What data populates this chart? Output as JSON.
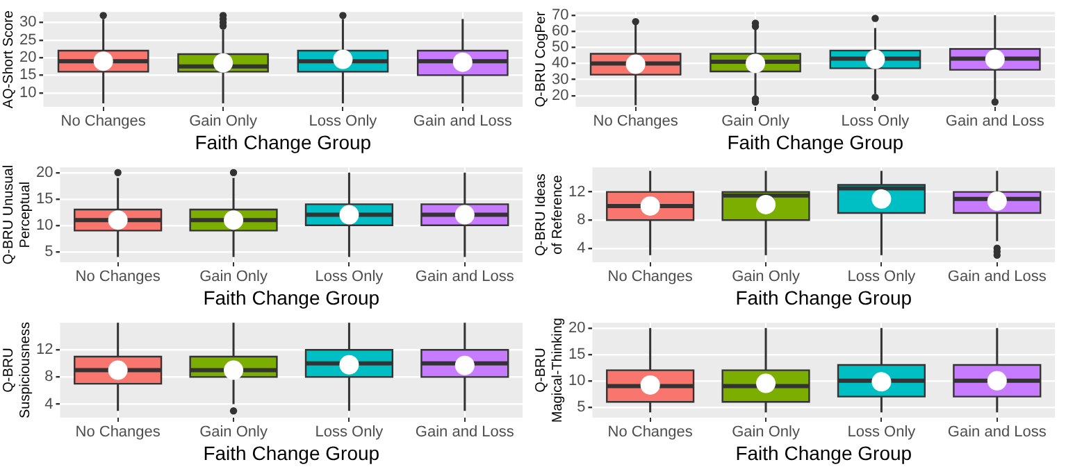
{
  "chart_data": [
    {
      "type": "box",
      "xlabel": "Faith Change Group",
      "ylabel": "AQ-Short Score",
      "categories": [
        "No Changes",
        "Gain Only",
        "Loss Only",
        "Gain and Loss"
      ],
      "colors": [
        "#f8766d",
        "#7cae00",
        "#00bfc4",
        "#c77cff"
      ],
      "ylim": [
        6,
        33
      ],
      "yticks": [
        10,
        15,
        20,
        25,
        30
      ],
      "grid": true,
      "legend": false,
      "boxes": [
        {
          "low": 7,
          "q1": 16,
          "median": 19,
          "q3": 22,
          "high": 31,
          "mean": 19,
          "outliers": [
            32
          ]
        },
        {
          "low": 7,
          "q1": 16,
          "median": 17.5,
          "q3": 21,
          "high": 28,
          "mean": 18.5,
          "outliers": [
            29,
            30,
            31,
            32
          ]
        },
        {
          "low": 7,
          "q1": 16,
          "median": 19,
          "q3": 22,
          "high": 31,
          "mean": 19.5,
          "outliers": [
            32
          ]
        },
        {
          "low": 7,
          "q1": 15,
          "median": 19,
          "q3": 22,
          "high": 31,
          "mean": 18.7
        }
      ]
    },
    {
      "type": "box",
      "xlabel": "Faith Change Group",
      "ylabel": "Q-BRU CogPer",
      "categories": [
        "No Changes",
        "Gain Only",
        "Loss Only",
        "Gain and Loss"
      ],
      "colors": [
        "#f8766d",
        "#7cae00",
        "#00bfc4",
        "#c77cff"
      ],
      "ylim": [
        13,
        72
      ],
      "yticks": [
        20,
        30,
        40,
        50,
        60,
        70
      ],
      "grid": true,
      "legend": false,
      "boxes": [
        {
          "low": 14,
          "q1": 33,
          "median": 40,
          "q3": 46,
          "high": 65,
          "mean": 39.5,
          "outliers": [
            66
          ]
        },
        {
          "low": 19,
          "q1": 35,
          "median": 41,
          "q3": 46,
          "high": 62,
          "mean": 40,
          "outliers": [
            63,
            65,
            16,
            18
          ]
        },
        {
          "low": 21,
          "q1": 37,
          "median": 43,
          "q3": 48,
          "high": 62,
          "mean": 42.5,
          "outliers": [
            19,
            68
          ]
        },
        {
          "low": 17,
          "q1": 36,
          "median": 43,
          "q3": 49,
          "high": 70,
          "mean": 42.5,
          "outliers": [
            16
          ]
        }
      ]
    },
    {
      "type": "box",
      "xlabel": "Faith Change Group",
      "ylabel": "Q-BRU Unusual Perceptual",
      "categories": [
        "No Changes",
        "Gain Only",
        "Loss Only",
        "Gain and Loss"
      ],
      "colors": [
        "#f8766d",
        "#7cae00",
        "#00bfc4",
        "#c77cff"
      ],
      "ylim": [
        3,
        21
      ],
      "yticks": [
        5,
        10,
        15,
        20
      ],
      "grid": true,
      "legend": false,
      "boxes": [
        {
          "low": 4,
          "q1": 9,
          "median": 11,
          "q3": 13,
          "high": 19,
          "mean": 11,
          "outliers": [
            20
          ]
        },
        {
          "low": 4,
          "q1": 9,
          "median": 11,
          "q3": 13,
          "high": 19,
          "mean": 11,
          "outliers": [
            20
          ]
        },
        {
          "low": 4,
          "q1": 10,
          "median": 12,
          "q3": 14,
          "high": 20,
          "mean": 12
        },
        {
          "low": 4,
          "q1": 10,
          "median": 12,
          "q3": 14,
          "high": 20,
          "mean": 12
        }
      ]
    },
    {
      "type": "box",
      "xlabel": "Faith Change Group",
      "ylabel": "Q-BRU Ideas of Reference",
      "categories": [
        "No Changes",
        "Gain Only",
        "Loss Only",
        "Gain and Loss"
      ],
      "colors": [
        "#f8766d",
        "#7cae00",
        "#00bfc4",
        "#c77cff"
      ],
      "ylim": [
        2,
        15.5
      ],
      "yticks": [
        4,
        8,
        12
      ],
      "grid": true,
      "legend": false,
      "boxes": [
        {
          "low": 3,
          "q1": 8,
          "median": 10,
          "q3": 12,
          "high": 15,
          "mean": 10
        },
        {
          "low": 3,
          "q1": 8,
          "median": 11.5,
          "q3": 12,
          "high": 15,
          "mean": 10.2
        },
        {
          "low": 3,
          "q1": 9,
          "median": 12.5,
          "q3": 13,
          "high": 15,
          "mean": 11
        },
        {
          "low": 5,
          "q1": 9,
          "median": 11,
          "q3": 12,
          "high": 15,
          "mean": 10.7,
          "outliers": [
            3,
            3.5,
            4
          ]
        }
      ]
    },
    {
      "type": "box",
      "xlabel": "Faith Change Group",
      "ylabel": "Q-BRU Suspiciousness",
      "categories": [
        "No Changes",
        "Gain Only",
        "Loss Only",
        "Gain and Loss"
      ],
      "colors": [
        "#f8766d",
        "#7cae00",
        "#00bfc4",
        "#c77cff"
      ],
      "ylim": [
        2,
        16
      ],
      "yticks": [
        4,
        8,
        12
      ],
      "grid": true,
      "legend": false,
      "boxes": [
        {
          "low": 3,
          "q1": 7,
          "median": 9,
          "q3": 11,
          "high": 16,
          "mean": 9
        },
        {
          "low": 4,
          "q1": 8,
          "median": 9,
          "q3": 11,
          "high": 16,
          "mean": 9,
          "outliers": [
            3
          ]
        },
        {
          "low": 3,
          "q1": 8,
          "median": 10,
          "q3": 12,
          "high": 16,
          "mean": 9.8
        },
        {
          "low": 3,
          "q1": 8,
          "median": 10,
          "q3": 12,
          "high": 16,
          "mean": 9.7
        }
      ]
    },
    {
      "type": "box",
      "xlabel": "Faith Change Group",
      "ylabel": "Q-BRU Magical-Thinking",
      "categories": [
        "No Changes",
        "Gain Only",
        "Loss Only",
        "Gain and Loss"
      ],
      "colors": [
        "#f8766d",
        "#7cae00",
        "#00bfc4",
        "#c77cff"
      ],
      "ylim": [
        3,
        21
      ],
      "yticks": [
        5,
        10,
        15,
        20
      ],
      "grid": true,
      "legend": false,
      "boxes": [
        {
          "low": 4,
          "q1": 6,
          "median": 9,
          "q3": 12,
          "high": 20,
          "mean": 9.2
        },
        {
          "low": 4,
          "q1": 6,
          "median": 9,
          "q3": 12,
          "high": 20,
          "mean": 9.5
        },
        {
          "low": 4,
          "q1": 7,
          "median": 10,
          "q3": 13,
          "high": 20,
          "mean": 9.8
        },
        {
          "low": 4,
          "q1": 7,
          "median": 10,
          "q3": 13,
          "high": 20,
          "mean": 10
        }
      ]
    }
  ]
}
